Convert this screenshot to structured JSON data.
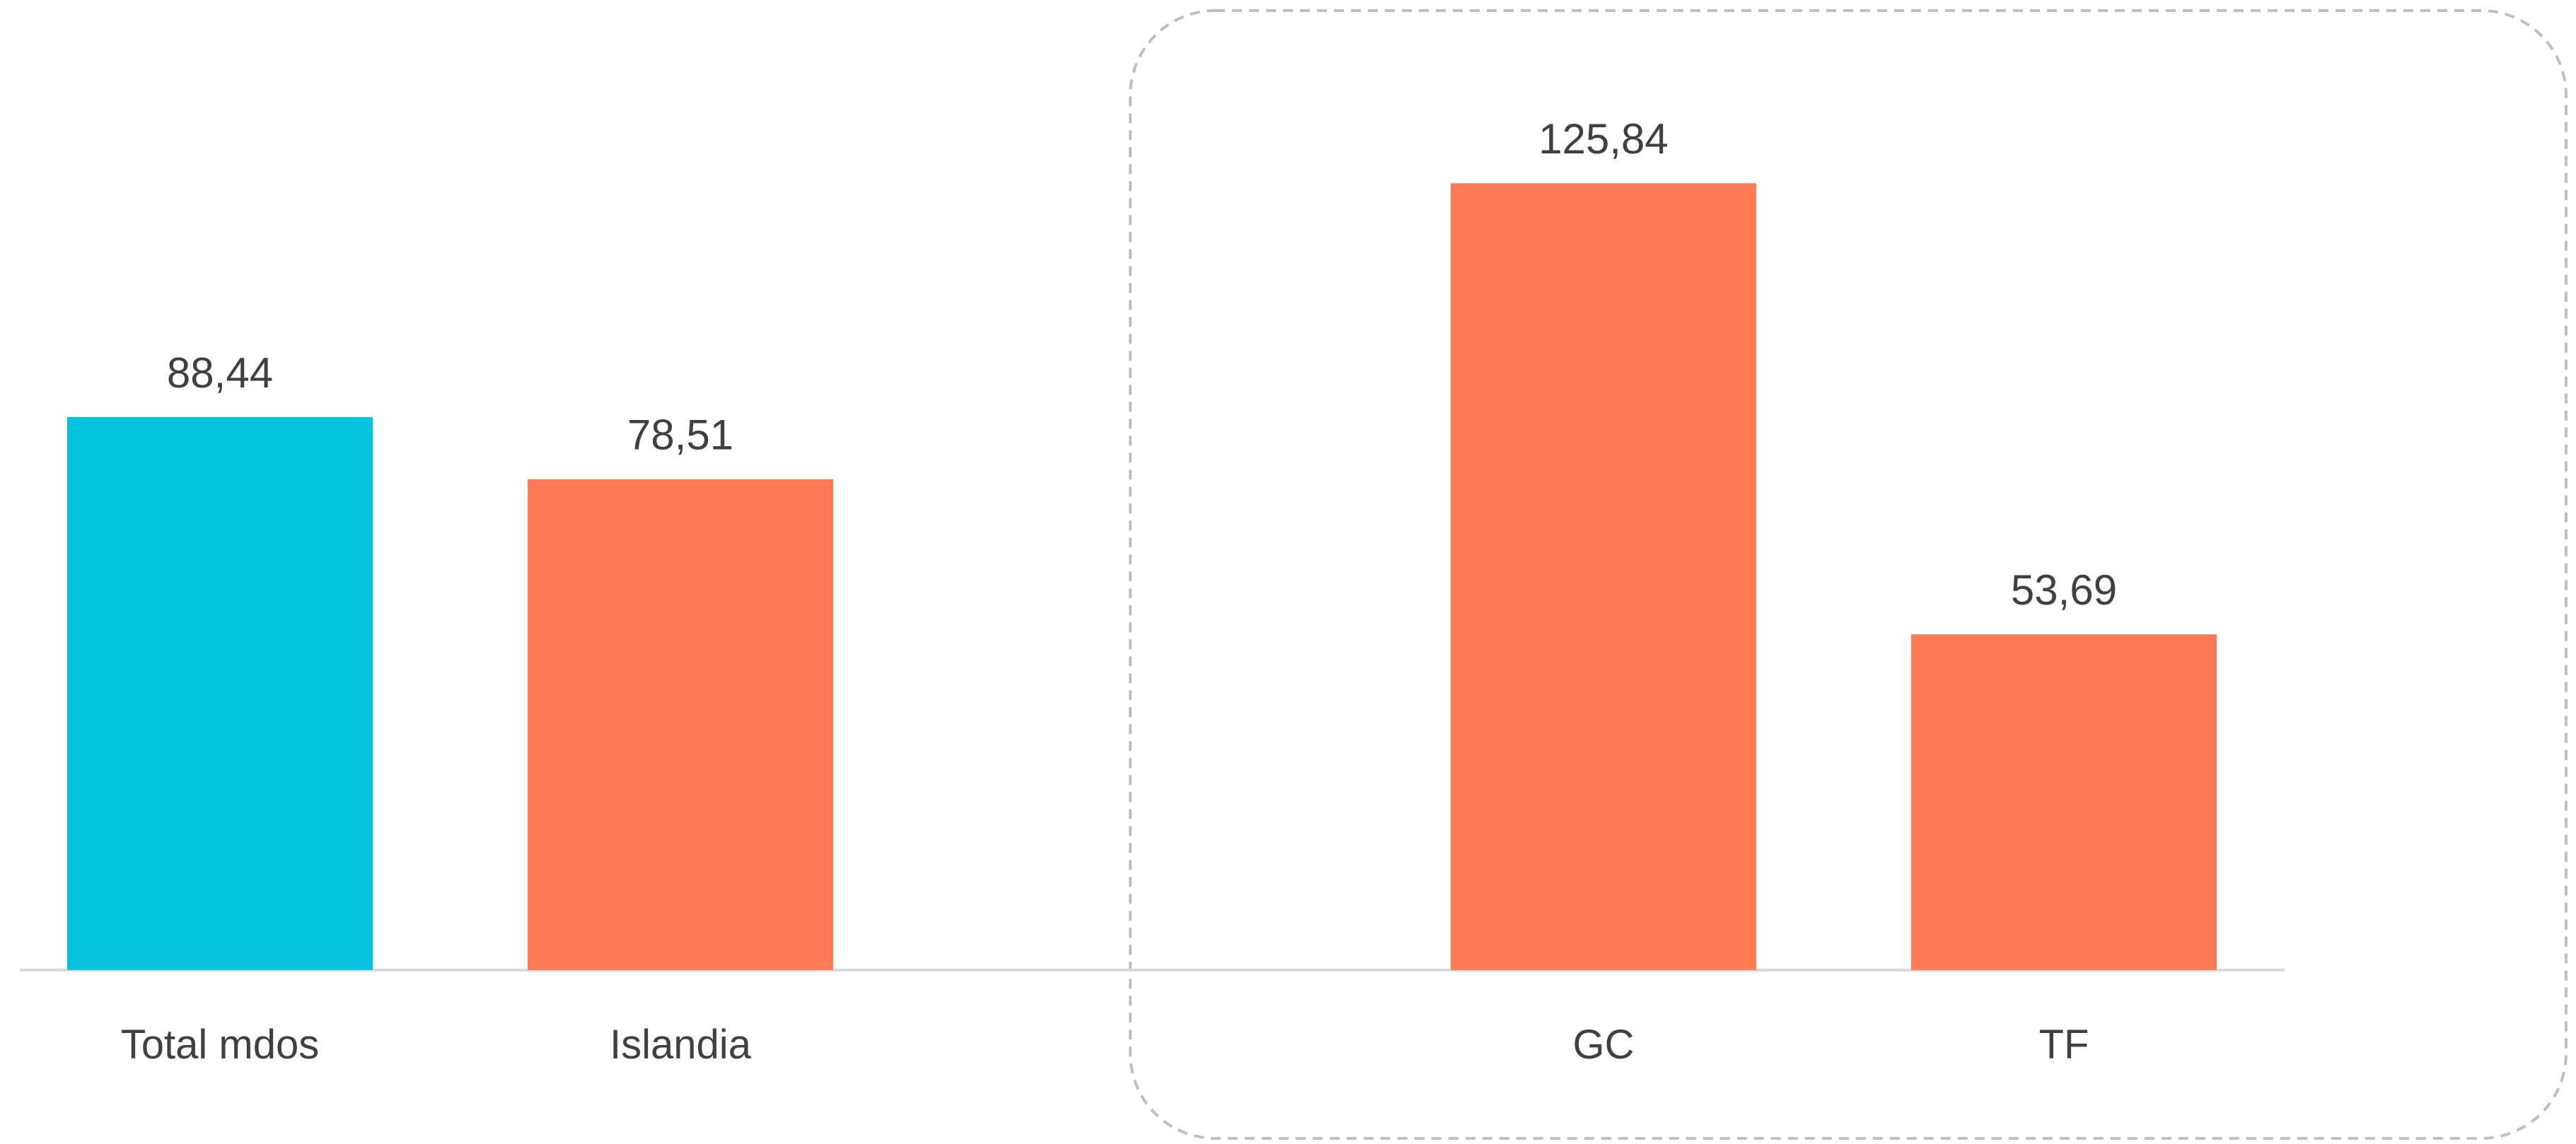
{
  "chart_data": {
    "type": "bar",
    "categories": [
      "Total mdos",
      "Islandia",
      "GC",
      "TF"
    ],
    "values": [
      88.44,
      78.51,
      125.84,
      53.69
    ],
    "data_labels": [
      "88,44",
      "78,51",
      "125,84",
      "53,69"
    ],
    "bar_colors": [
      "#06C3DF",
      "#FF7B55",
      "#FF7B55",
      "#FF7B55"
    ],
    "title": "",
    "xlabel": "",
    "ylabel": "",
    "ylim": [
      0,
      140
    ],
    "grid": false,
    "legend": "none",
    "highlight_group": [
      "GC",
      "TF"
    ]
  },
  "colors": {
    "axis": "#D9D9D9",
    "highlight_border": "#BFBFBF",
    "text": "#404040"
  }
}
